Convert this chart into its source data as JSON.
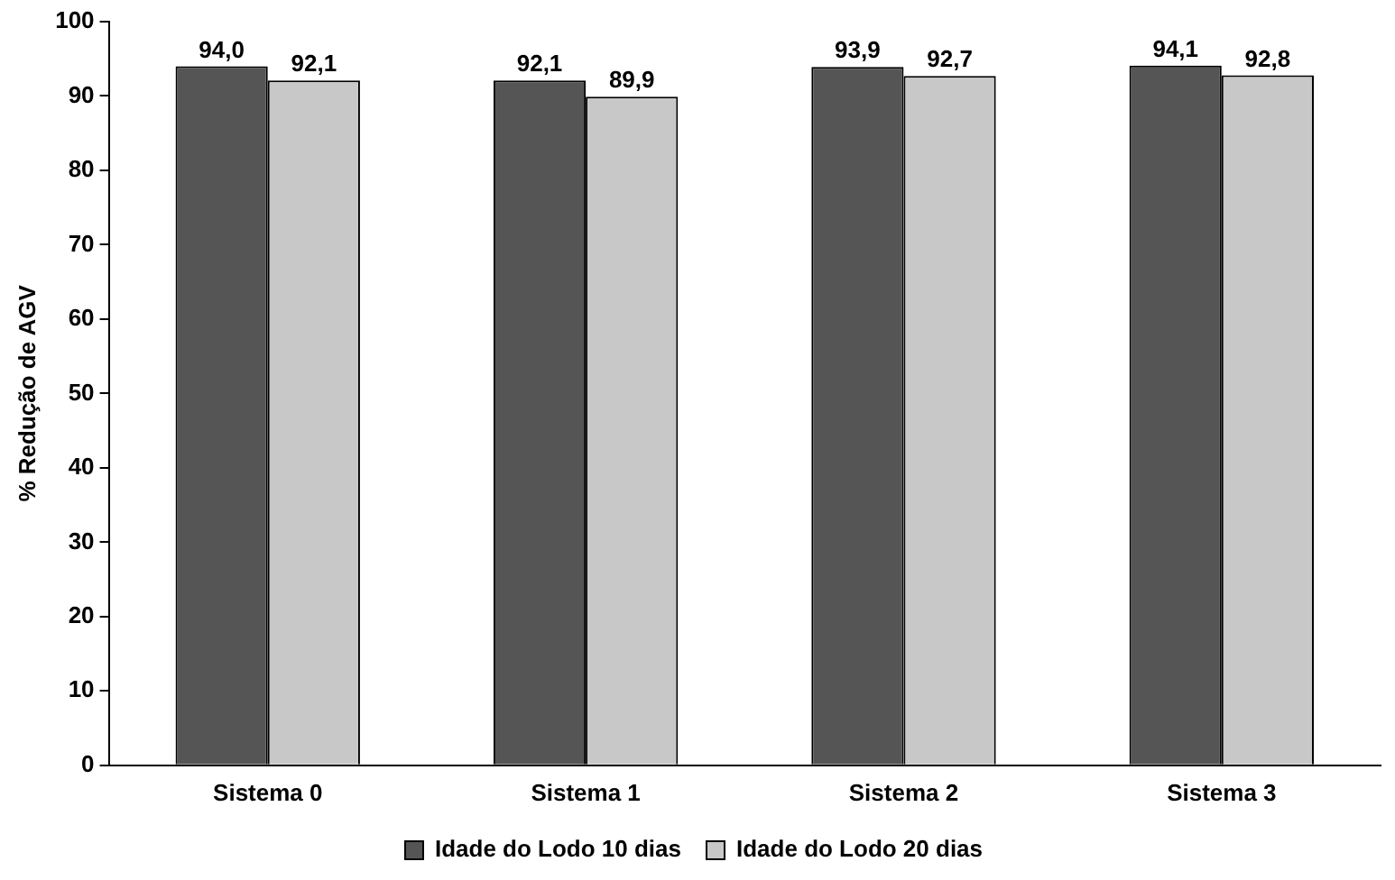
{
  "chart_data": {
    "type": "bar",
    "ylabel": "% Redução de AGV",
    "categories": [
      "Sistema 0",
      "Sistema 1",
      "Sistema 2",
      "Sistema 3"
    ],
    "series": [
      {
        "name": "Idade do Lodo 10 dias",
        "color": "#555555",
        "values": [
          94.0,
          92.1,
          93.9,
          94.1
        ],
        "value_labels": [
          "94,0",
          "92,1",
          "93,9",
          "94,1"
        ]
      },
      {
        "name": "Idade do Lodo 20 dias",
        "color": "#c8c8c8",
        "values": [
          92.1,
          89.9,
          92.7,
          92.8
        ],
        "value_labels": [
          "92,1",
          "89,9",
          "92,7",
          "92,8"
        ]
      }
    ],
    "ylim": [
      0,
      100
    ],
    "yticks": [
      0,
      10,
      20,
      30,
      40,
      50,
      60,
      70,
      80,
      90,
      100
    ],
    "grid": false,
    "legend": "bottom"
  }
}
